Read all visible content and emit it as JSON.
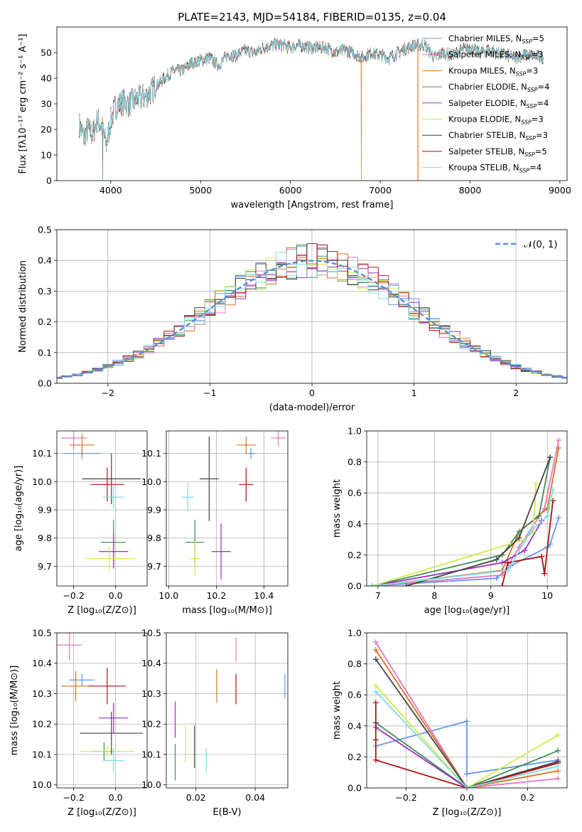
{
  "colors": {
    "Chabrier MILES": "#6495ED",
    "Salpeter MILES": "#E377C2",
    "Kroupa MILES": "#D9731F",
    "Chabrier ELODIE": "#3F8F5A",
    "Salpeter ELODIE": "#9B30C0",
    "Kroupa ELODIE": "#D4E84C",
    "Chabrier STELIB": "#444444",
    "Salpeter STELIB": "#B01010",
    "Kroupa STELIB": "#7FDCE4"
  },
  "chart_data": [
    {
      "id": "spectrum",
      "type": "line",
      "title": "PLATE=2143, MJD=54184, FIBERID=0135, z=0.04",
      "xlabel": "wavelength [Angstrom, rest frame]",
      "ylabel": "Flux [fλ10⁻¹⁷ erg cm⁻² s⁻¹ A⁻¹]",
      "xlim": [
        3400,
        9080
      ],
      "ylim": [
        0,
        60
      ],
      "xticks": [
        4000,
        5000,
        6000,
        7000,
        8000,
        9000
      ],
      "yticks": [
        0,
        10,
        20,
        30,
        40,
        50
      ],
      "grid": false,
      "legend_position": "top-right",
      "legend": [
        {
          "name": "Chabrier MILES",
          "nssp": "5"
        },
        {
          "name": "Salpeter MILES",
          "nssp": "3"
        },
        {
          "name": "Kroupa MILES",
          "nssp": "3"
        },
        {
          "name": "Chabrier ELODIE",
          "nssp": "4"
        },
        {
          "name": "Salpeter ELODIE",
          "nssp": "4"
        },
        {
          "name": "Kroupa ELODIE",
          "nssp": "3"
        },
        {
          "name": "Chabrier STELIB",
          "nssp": "3"
        },
        {
          "name": "Salpeter STELIB",
          "nssp": "5"
        },
        {
          "name": "Kroupa STELIB",
          "nssp": "4"
        }
      ],
      "envelope": {
        "x": [
          3650,
          3700,
          3750,
          3800,
          3850,
          3900,
          3950,
          4000,
          4050,
          4100,
          4150,
          4200,
          4300,
          4400,
          4500,
          4600,
          4700,
          4800,
          4900,
          5000,
          5100,
          5200,
          5300,
          5400,
          5500,
          5600,
          5700,
          5800,
          5900,
          6000,
          6100,
          6200,
          6300,
          6400,
          6500,
          6600,
          6700,
          6800,
          6900,
          7000,
          7100,
          7200,
          7300,
          7400,
          7500,
          7600,
          7700,
          7800,
          7900,
          8000,
          8100,
          8200,
          8300,
          8400,
          8500,
          8600,
          8700,
          8820
        ],
        "y": [
          22,
          17,
          20,
          18,
          24,
          21,
          14,
          23,
          29,
          30,
          31,
          30,
          32,
          33,
          37,
          40,
          43,
          43,
          46,
          47,
          48,
          45,
          49,
          49,
          51,
          50,
          52,
          53,
          53,
          52,
          53,
          52,
          52,
          52,
          50,
          51,
          50,
          48,
          50,
          49,
          48,
          50,
          52,
          53,
          53,
          48,
          50,
          49,
          51,
          52,
          50,
          51,
          50,
          49,
          48,
          49,
          49,
          48
        ]
      },
      "dips": [
        {
          "series": "Chabrier ELODIE",
          "x": 3910
        },
        {
          "series": "Kroupa MILES",
          "x": 6790
        },
        {
          "series": "Kroupa MILES",
          "x": 7420
        }
      ]
    },
    {
      "id": "residuals",
      "type": "histogram",
      "xlabel": "(data-model)/error",
      "ylabel": "Normed distribution",
      "xlim": [
        -2.5,
        2.5
      ],
      "ylim": [
        0,
        0.5
      ],
      "xticks": [
        -2,
        -1,
        0,
        1,
        2
      ],
      "yticks": [
        0.0,
        0.1,
        0.2,
        0.3,
        0.4,
        0.5
      ],
      "grid": true,
      "legend_position": "top-right",
      "reference_curve": {
        "label": "𝒩(0, 1)",
        "mean": 0,
        "sigma": 1
      },
      "bin_width": 0.1
    },
    {
      "id": "age_vs_Z",
      "type": "scatter-errorbar",
      "xlabel": "Z [log₁₀(Z/Z⊙)]",
      "ylabel": "age  [log₁₀(age/yr)]",
      "xlim": [
        -0.28,
        0.15
      ],
      "ylim": [
        9.63,
        10.18
      ],
      "xticks": [
        -0.2,
        0.0
      ],
      "yticks": [
        9.7,
        9.8,
        9.9,
        10.0,
        10.1
      ],
      "grid": true,
      "points": [
        {
          "series": "Chabrier MILES",
          "x": -0.16,
          "y": 10.1,
          "xerr": 0.09,
          "yerr": 0.02
        },
        {
          "series": "Salpeter MILES",
          "x": -0.2,
          "y": 10.155,
          "xerr": 0.06,
          "yerr": 0.04
        },
        {
          "series": "Kroupa MILES",
          "x": -0.16,
          "y": 10.13,
          "xerr": 0.06,
          "yerr": 0.04
        },
        {
          "series": "Chabrier ELODIE",
          "x": -0.01,
          "y": 9.785,
          "xerr": 0.06,
          "yerr": 0.08
        },
        {
          "series": "Salpeter ELODIE",
          "x": -0.01,
          "y": 9.752,
          "xerr": 0.07,
          "yerr": 0.06
        },
        {
          "series": "Kroupa ELODIE",
          "x": -0.03,
          "y": 9.727,
          "xerr": 0.12,
          "yerr": 0.045
        },
        {
          "series": "Chabrier STELIB",
          "x": -0.02,
          "y": 10.01,
          "xerr": 0.14,
          "yerr": 0.09
        },
        {
          "series": "Salpeter STELIB",
          "x": -0.04,
          "y": 9.99,
          "xerr": 0.08,
          "yerr": 0.06
        },
        {
          "series": "Kroupa STELIB",
          "x": -0.01,
          "y": 9.945,
          "xerr": 0.05,
          "yerr": 0.04
        }
      ]
    },
    {
      "id": "age_vs_mass",
      "type": "scatter-errorbar",
      "xlabel": "mass [log₁₀(M/M⊙)]",
      "ylabel": "",
      "xlim": [
        9.99,
        10.5
      ],
      "ylim": [
        9.63,
        10.18
      ],
      "xticks": [
        10.0,
        10.2,
        10.4
      ],
      "yticks": [
        9.7,
        9.8,
        9.9,
        10.0,
        10.1
      ],
      "grid": true,
      "points": [
        {
          "series": "Chabrier MILES",
          "x": 10.345,
          "y": 10.1,
          "xerr": 0.02,
          "yerr": 0.02
        },
        {
          "series": "Salpeter MILES",
          "x": 10.46,
          "y": 10.155,
          "xerr": 0.03,
          "yerr": 0.03
        },
        {
          "series": "Kroupa MILES",
          "x": 10.325,
          "y": 10.13,
          "xerr": 0.04,
          "yerr": 0.03
        },
        {
          "series": "Chabrier ELODIE",
          "x": 10.11,
          "y": 9.785,
          "xerr": 0.04,
          "yerr": 0.08
        },
        {
          "series": "Salpeter ELODIE",
          "x": 10.22,
          "y": 9.752,
          "xerr": 0.04,
          "yerr": 0.1
        },
        {
          "series": "Kroupa ELODIE",
          "x": 10.11,
          "y": 9.727,
          "xerr": 0.02,
          "yerr": 0.06
        },
        {
          "series": "Chabrier STELIB",
          "x": 10.17,
          "y": 10.01,
          "xerr": 0.04,
          "yerr": 0.15
        },
        {
          "series": "Salpeter STELIB",
          "x": 10.325,
          "y": 9.99,
          "xerr": 0.03,
          "yerr": 0.06
        },
        {
          "series": "Kroupa STELIB",
          "x": 10.08,
          "y": 9.945,
          "xerr": 0.025,
          "yerr": 0.05
        }
      ]
    },
    {
      "id": "massweight_vs_age",
      "type": "line",
      "xlabel": "age  [log₁₀(age/yr)]",
      "ylabel": "mass weight",
      "xlim": [
        6.8,
        10.35
      ],
      "ylim": [
        0,
        1.0
      ],
      "xticks": [
        7,
        8,
        9,
        10
      ],
      "yticks": [
        0.0,
        0.2,
        0.4,
        0.6,
        0.8,
        1.0
      ],
      "grid": true,
      "series": [
        {
          "name": "Chabrier MILES",
          "x": [
            6.9,
            9.1,
            9.35,
            10.0,
            10.05,
            10.2
          ],
          "y": [
            0.0,
            0.05,
            0.13,
            0.25,
            0.27,
            0.44
          ]
        },
        {
          "name": "Salpeter MILES",
          "x": [
            6.9,
            9.2,
            9.5,
            9.95,
            10.2
          ],
          "y": [
            0.0,
            0.07,
            0.25,
            0.5,
            0.94
          ]
        },
        {
          "name": "Kroupa MILES",
          "x": [
            6.9,
            9.2,
            9.5,
            10.0,
            10.2
          ],
          "y": [
            0.0,
            0.1,
            0.35,
            0.5,
            0.89
          ]
        },
        {
          "name": "Chabrier ELODIE",
          "x": [
            6.9,
            9.2,
            9.5,
            9.85,
            10.05
          ],
          "y": [
            0.0,
            0.2,
            0.35,
            0.45,
            0.83
          ]
        },
        {
          "name": "Salpeter ELODIE",
          "x": [
            6.9,
            9.2,
            9.6,
            9.9
          ],
          "y": [
            0.0,
            0.15,
            0.23,
            0.42
          ]
        },
        {
          "name": "Kroupa ELODIE",
          "x": [
            6.9,
            9.6,
            9.75,
            9.8
          ],
          "y": [
            0.0,
            0.3,
            0.35,
            0.66
          ]
        },
        {
          "name": "Chabrier STELIB",
          "x": [
            7.5,
            9.1,
            9.5,
            10.05
          ],
          "y": [
            0.0,
            0.17,
            0.31,
            0.83
          ]
        },
        {
          "name": "Salpeter STELIB",
          "x": [
            9.2,
            9.3,
            9.9,
            9.95,
            10.1
          ],
          "y": [
            0.0,
            0.15,
            0.19,
            0.08,
            0.55
          ]
        },
        {
          "name": "Kroupa STELIB",
          "x": [
            6.9,
            9.3,
            9.7,
            10.0,
            10.1
          ],
          "y": [
            0.0,
            0.1,
            0.35,
            0.45,
            0.62
          ]
        }
      ]
    },
    {
      "id": "mass_vs_Z",
      "type": "scatter-errorbar",
      "xlabel": "Z [log₁₀(Z/Z⊙)]",
      "ylabel": "mass [log₁₀(M/M⊙)]",
      "xlim": [
        -0.28,
        0.15
      ],
      "ylim": [
        9.99,
        10.5
      ],
      "xticks": [
        -0.2,
        0.0
      ],
      "yticks": [
        10.0,
        10.1,
        10.2,
        10.3,
        10.4,
        10.5
      ],
      "grid": true,
      "points": [
        {
          "series": "Chabrier MILES",
          "x": -0.16,
          "y": 10.345,
          "xerr": 0.06,
          "yerr": 0.02
        },
        {
          "series": "Salpeter MILES",
          "x": -0.22,
          "y": 10.46,
          "xerr": 0.06,
          "yerr": 0.05
        },
        {
          "series": "Kroupa MILES",
          "x": -0.19,
          "y": 10.325,
          "xerr": 0.07,
          "yerr": 0.05
        },
        {
          "series": "Chabrier ELODIE",
          "x": -0.055,
          "y": 10.11,
          "xerr": 0.05,
          "yerr": 0.03
        },
        {
          "series": "Salpeter ELODIE",
          "x": -0.01,
          "y": 10.22,
          "xerr": 0.07,
          "yerr": 0.05
        },
        {
          "series": "Kroupa ELODIE",
          "x": -0.04,
          "y": 10.11,
          "xerr": 0.13,
          "yerr": 0.02
        },
        {
          "series": "Chabrier STELIB",
          "x": -0.02,
          "y": 10.17,
          "xerr": 0.15,
          "yerr": 0.07
        },
        {
          "series": "Salpeter STELIB",
          "x": -0.04,
          "y": 10.325,
          "xerr": 0.09,
          "yerr": 0.06
        },
        {
          "series": "Kroupa STELIB",
          "x": -0.01,
          "y": 10.08,
          "xerr": 0.05,
          "yerr": 0.04
        }
      ]
    },
    {
      "id": "mass_vs_EBV",
      "type": "scatter-errorbar",
      "xlabel": "E(B-V)",
      "ylabel": "",
      "xlim": [
        0.01,
        0.051
      ],
      "ylim": [
        9.99,
        10.5
      ],
      "xticks": [
        0.02,
        0.04
      ],
      "yticks": [
        10.0,
        10.1,
        10.2,
        10.3,
        10.4,
        10.5
      ],
      "grid": true,
      "points": [
        {
          "series": "Chabrier MILES",
          "x": 0.05,
          "y": 10.325,
          "xerr": 0.0,
          "yerr": 0.04
        },
        {
          "series": "Salpeter MILES",
          "x": 0.0335,
          "y": 10.445,
          "xerr": 0.0,
          "yerr": 0.04
        },
        {
          "series": "Kroupa MILES",
          "x": 0.027,
          "y": 10.325,
          "xerr": 0.0,
          "yerr": 0.055
        },
        {
          "series": "Chabrier ELODIE",
          "x": 0.013,
          "y": 10.075,
          "xerr": 0.0,
          "yerr": 0.06
        },
        {
          "series": "Salpeter ELODIE",
          "x": 0.013,
          "y": 10.215,
          "xerr": 0.0,
          "yerr": 0.06
        },
        {
          "series": "Kroupa ELODIE",
          "x": 0.0165,
          "y": 10.135,
          "xerr": 0.0,
          "yerr": 0.06
        },
        {
          "series": "Chabrier STELIB",
          "x": 0.0195,
          "y": 10.125,
          "xerr": 0.0,
          "yerr": 0.07
        },
        {
          "series": "Salpeter STELIB",
          "x": 0.0335,
          "y": 10.315,
          "xerr": 0.0,
          "yerr": 0.05
        },
        {
          "series": "Kroupa STELIB",
          "x": 0.0235,
          "y": 10.08,
          "xerr": 0.0,
          "yerr": 0.04
        }
      ]
    },
    {
      "id": "massweight_vs_Z",
      "type": "line",
      "xlabel": "Z [log₁₀(Z/Z⊙)]",
      "ylabel": "mass weight",
      "xlim": [
        -0.33,
        0.33
      ],
      "ylim": [
        0,
        1.0
      ],
      "xticks": [
        -0.2,
        0.0,
        0.2
      ],
      "yticks": [
        0.0,
        0.2,
        0.4,
        0.6,
        0.8,
        1.0
      ],
      "grid": true,
      "series": [
        {
          "name": "Chabrier MILES",
          "x": [
            -0.3,
            0.0,
            0.0,
            0.3
          ],
          "y": [
            0.27,
            0.43,
            0.09,
            0.18
          ]
        },
        {
          "name": "Salpeter MILES",
          "x": [
            -0.3,
            0.0,
            0.3
          ],
          "y": [
            0.94,
            0.0,
            0.06
          ]
        },
        {
          "name": "Kroupa MILES",
          "x": [
            -0.3,
            0.0,
            0.3
          ],
          "y": [
            0.89,
            0.0,
            0.11
          ]
        },
        {
          "name": "Chabrier ELODIE",
          "x": [
            -0.3,
            0.0,
            0.3
          ],
          "y": [
            0.42,
            0.0,
            0.24
          ]
        },
        {
          "name": "Salpeter ELODIE",
          "x": [
            -0.3,
            -0.3,
            0.0,
            0.3
          ],
          "y": [
            0.42,
            0.39,
            0.0,
            0.17
          ]
        },
        {
          "name": "Kroupa ELODIE",
          "x": [
            -0.3,
            0.0,
            0.3
          ],
          "y": [
            0.66,
            0.0,
            0.34
          ]
        },
        {
          "name": "Chabrier STELIB",
          "x": [
            -0.3,
            0.0,
            0.3
          ],
          "y": [
            0.83,
            0.0,
            0.17
          ]
        },
        {
          "name": "Salpeter STELIB",
          "x": [
            -0.3,
            -0.3,
            -0.3,
            0.0,
            0.3
          ],
          "y": [
            0.55,
            0.31,
            0.18,
            0.0,
            0.16
          ]
        },
        {
          "name": "Kroupa STELIB",
          "x": [
            -0.3,
            0.0,
            0.3
          ],
          "y": [
            0.62,
            0.0,
            0.14
          ]
        }
      ]
    }
  ]
}
